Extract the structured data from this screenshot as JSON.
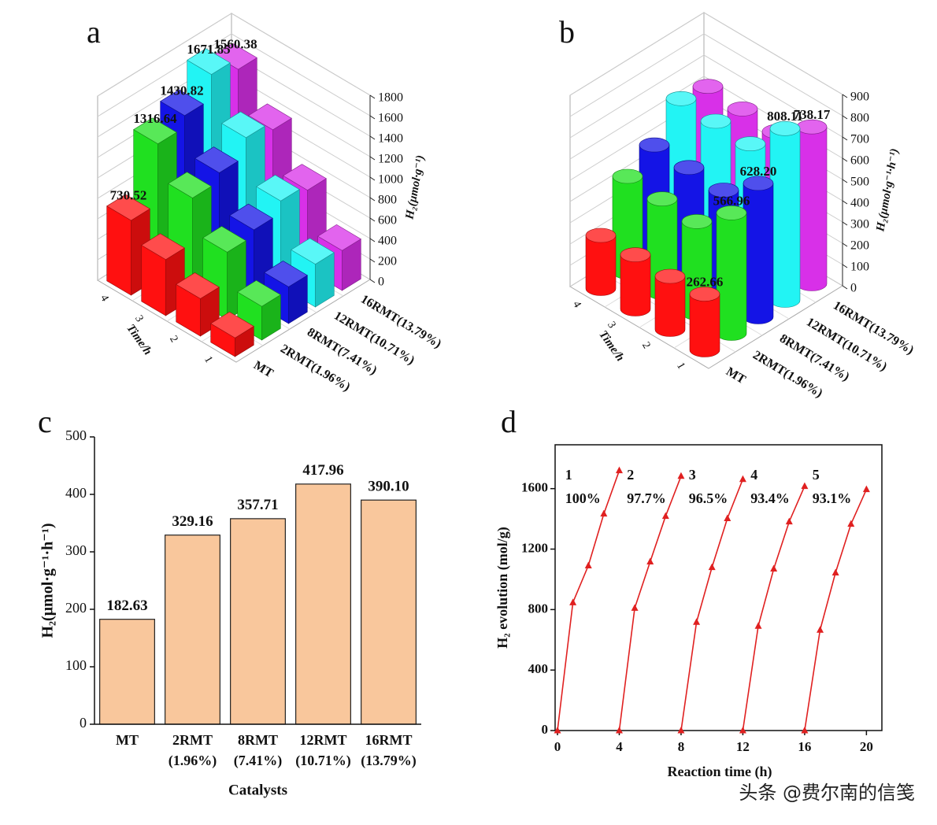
{
  "chart_data": [
    {
      "type": "bar3d",
      "shape": "box",
      "title": "a",
      "xlabel": "Time/h",
      "zlabel": "H₂(μmol·g⁻¹)",
      "categories": [
        "1",
        "2",
        "3",
        "4"
      ],
      "zlim": [
        0,
        1800
      ],
      "zticks": [
        0,
        200,
        400,
        600,
        800,
        1000,
        1200,
        1400,
        1600,
        1800
      ],
      "series": [
        {
          "name": "MT",
          "color": "#ff1010",
          "values": [
            183,
            366,
            548,
            730.52
          ],
          "value_labels": [
            null,
            null,
            null,
            "730.52"
          ]
        },
        {
          "name": "2RMT(1.96%)",
          "color": "#20e020",
          "values": [
            329,
            658,
            988,
            1316.64
          ],
          "value_labels": [
            null,
            null,
            null,
            "1316.64"
          ]
        },
        {
          "name": "8RMT(7.41%)",
          "color": "#1414e6",
          "values": [
            358,
            715,
            1073,
            1430.82
          ],
          "value_labels": [
            null,
            null,
            null,
            "1430.82"
          ]
        },
        {
          "name": "12RMT(10.71%)",
          "color": "#22f4f4",
          "values": [
            418,
            836,
            1254,
            1671.85
          ],
          "value_labels": [
            null,
            null,
            null,
            "1671.85"
          ]
        },
        {
          "name": "16RMT(13.79%)",
          "color": "#d830e8",
          "values": [
            390,
            780,
            1170,
            1560.38
          ],
          "value_labels": [
            null,
            null,
            null,
            "1560.38"
          ]
        }
      ]
    },
    {
      "type": "bar3d",
      "shape": "cylinder",
      "title": "b",
      "xlabel": "Time/h",
      "zlabel": "H₂(μmol·g⁻¹·h⁻¹)",
      "categories": [
        "1",
        "2",
        "3",
        "4"
      ],
      "zlim": [
        0,
        900
      ],
      "zticks": [
        0,
        100,
        200,
        300,
        400,
        500,
        600,
        700,
        800,
        900
      ],
      "series": [
        {
          "name": "MT",
          "color": "#ff1010",
          "values": [
            262.66,
            250,
            255,
            250
          ],
          "value_labels": [
            "262.66",
            null,
            null,
            null
          ]
        },
        {
          "name": "2RMT(1.96%)",
          "color": "#20e020",
          "values": [
            566.96,
            430,
            440,
            450
          ],
          "value_labels": [
            "566.96",
            null,
            null,
            null
          ]
        },
        {
          "name": "8RMT(7.41%)",
          "color": "#1414e6",
          "values": [
            628.2,
            500,
            510,
            520
          ],
          "value_labels": [
            "628.20",
            null,
            null,
            null
          ]
        },
        {
          "name": "12RMT(10.71%)",
          "color": "#22f4f4",
          "values": [
            808.11,
            640,
            650,
            660
          ],
          "value_labels": [
            "808.11",
            null,
            null,
            null
          ]
        },
        {
          "name": "16RMT(13.79%)",
          "color": "#d830e8",
          "values": [
            738.17,
            620,
            630,
            640
          ],
          "value_labels": [
            "738.17",
            null,
            null,
            null
          ]
        }
      ]
    },
    {
      "type": "bar",
      "title": "c",
      "xlabel": "Catalysts",
      "ylabel": "H₂(μmol·g⁻¹·h⁻¹)",
      "categories": [
        [
          "MT"
        ],
        [
          "2RMT",
          "(1.96%)"
        ],
        [
          "8RMT",
          "(7.41%)"
        ],
        [
          "12RMT",
          "(10.71%)"
        ],
        [
          "16RMT",
          "(13.79%)"
        ]
      ],
      "values": [
        182.63,
        329.16,
        357.71,
        417.96,
        390.1
      ],
      "value_labels": [
        "182.63",
        "329.16",
        "357.71",
        "417.96",
        "390.10"
      ],
      "color": "#f9c79c",
      "ylim": [
        0,
        500
      ],
      "yticks": [
        0,
        100,
        200,
        300,
        400,
        500
      ]
    },
    {
      "type": "line",
      "title": "d",
      "xlabel": "Reaction time (h)",
      "ylabel": "H₂ evolution (mol/g)",
      "xlim": [
        0,
        21
      ],
      "xticks": [
        0,
        4,
        8,
        12,
        16,
        20
      ],
      "ylim": [
        0,
        1890
      ],
      "yticks": [
        0,
        400,
        800,
        1200,
        1600
      ],
      "color": "#e02020",
      "series": [
        {
          "x": [
            0,
            1,
            2,
            3,
            4
          ],
          "values": [
            0,
            847,
            1091,
            1434,
            1720
          ]
        },
        {
          "x": [
            4,
            5,
            6,
            7,
            8
          ],
          "values": [
            0,
            810,
            1117,
            1418,
            1683
          ]
        },
        {
          "x": [
            8,
            9,
            10,
            11,
            12
          ],
          "values": [
            0,
            717,
            1080,
            1403,
            1662
          ]
        },
        {
          "x": [
            12,
            13,
            14,
            15,
            16
          ],
          "values": [
            0,
            691,
            1070,
            1382,
            1616
          ]
        },
        {
          "x": [
            16,
            17,
            18,
            19,
            20
          ],
          "values": [
            0,
            665,
            1044,
            1366,
            1595
          ]
        }
      ],
      "annotations": [
        {
          "label": "1",
          "percent": "100%"
        },
        {
          "label": "2",
          "percent": "97.7%"
        },
        {
          "label": "3",
          "percent": "96.5%"
        },
        {
          "label": "4",
          "percent": "93.4%"
        },
        {
          "label": "5",
          "percent": "93.1%"
        }
      ]
    }
  ],
  "watermark": "头条 @费尔南的信笺"
}
